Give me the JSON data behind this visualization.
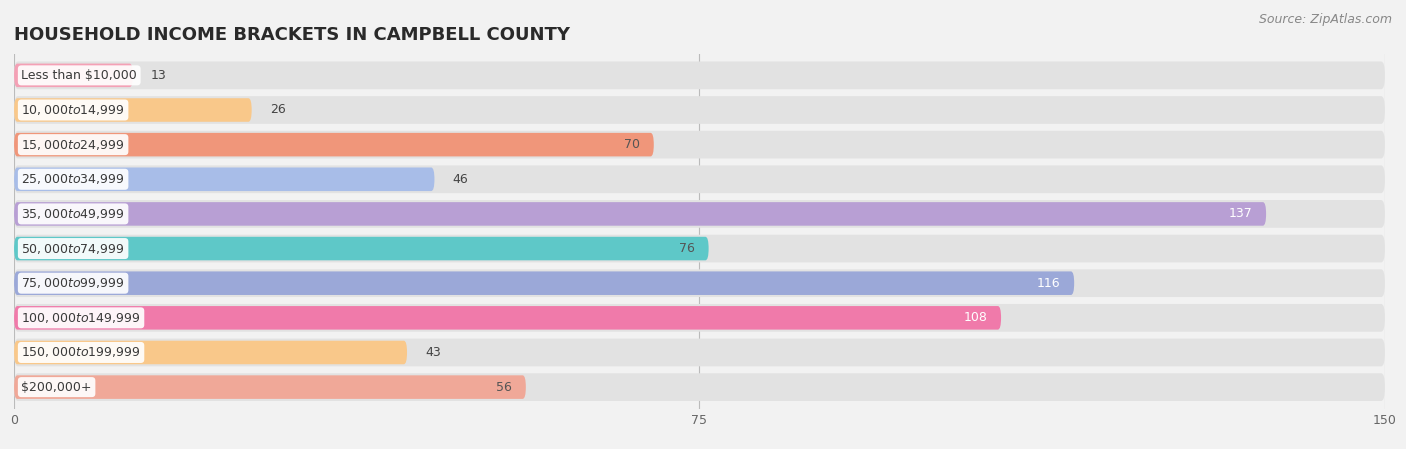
{
  "title": "HOUSEHOLD INCOME BRACKETS IN CAMPBELL COUNTY",
  "source": "Source: ZipAtlas.com",
  "categories": [
    "Less than $10,000",
    "$10,000 to $14,999",
    "$15,000 to $24,999",
    "$25,000 to $34,999",
    "$35,000 to $49,999",
    "$50,000 to $74,999",
    "$75,000 to $99,999",
    "$100,000 to $149,999",
    "$150,000 to $199,999",
    "$200,000+"
  ],
  "values": [
    13,
    26,
    70,
    46,
    137,
    76,
    116,
    108,
    43,
    56
  ],
  "bar_colors": [
    "#f4a0b5",
    "#f9c88a",
    "#f0967a",
    "#a8bde8",
    "#b89fd4",
    "#5ec8c8",
    "#9ba8d8",
    "#f07aaa",
    "#f9c88a",
    "#f0a898"
  ],
  "label_colors": [
    "#555555",
    "#555555",
    "#555555",
    "#555555",
    "#ffffff",
    "#555555",
    "#ffffff",
    "#ffffff",
    "#555555",
    "#555555"
  ],
  "value_threshold_inside": 55,
  "xlim": [
    0,
    150
  ],
  "xticks": [
    0,
    75,
    150
  ],
  "background_color": "#f2f2f2",
  "row_bg_color": "#e2e2e2",
  "title_fontsize": 13,
  "source_fontsize": 9,
  "value_fontsize": 9,
  "tick_fontsize": 9,
  "category_fontsize": 9
}
